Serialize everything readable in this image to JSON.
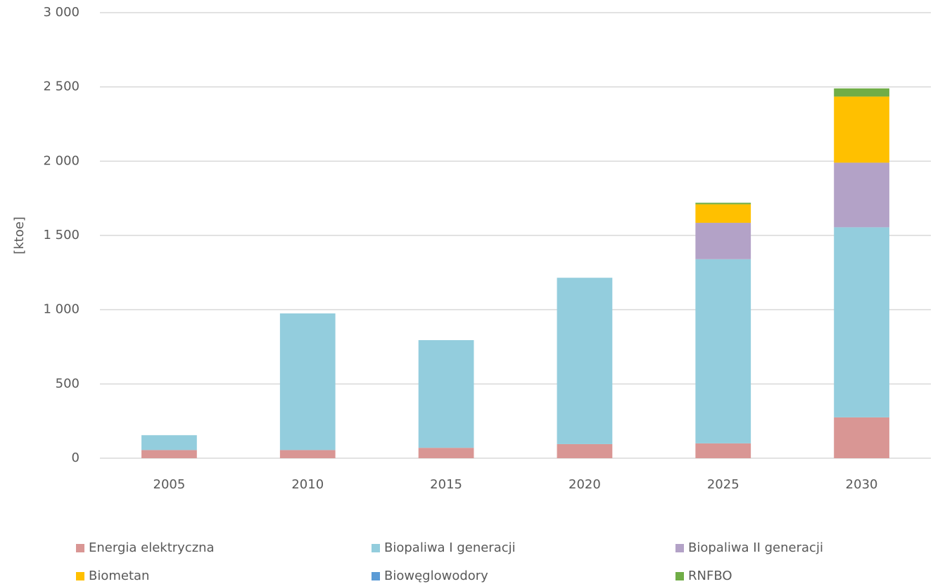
{
  "chart_data": {
    "type": "stacked_bar",
    "y_label": "[ktoe]",
    "categories": [
      "2005",
      "2010",
      "2015",
      "2020",
      "2025",
      "2030"
    ],
    "series": [
      {
        "name": "Energia elektryczna",
        "color": "#d99694",
        "values": [
          55,
          55,
          70,
          95,
          100,
          275
        ]
      },
      {
        "name": "Biopaliwa I generacji",
        "color": "#93cddd",
        "values": [
          100,
          920,
          725,
          1120,
          1240,
          1280
        ]
      },
      {
        "name": "Biopaliwa II generacji",
        "color": "#b3a2c7",
        "values": [
          0,
          0,
          0,
          0,
          245,
          435
        ]
      },
      {
        "name": "Biometan",
        "color": "#ffc000",
        "values": [
          0,
          0,
          0,
          0,
          125,
          445
        ]
      },
      {
        "name": "Biowęglowodory",
        "color": "#5b9bd5",
        "values": [
          0,
          0,
          0,
          0,
          0,
          0
        ]
      },
      {
        "name": "RNFBO",
        "color": "#70ad47",
        "values": [
          0,
          0,
          0,
          0,
          10,
          55
        ]
      }
    ],
    "ylim": [
      0,
      3000
    ],
    "yticks": [
      0,
      500,
      {
        "value": 1000,
        "label": "1 000"
      },
      {
        "value": 1500,
        "label": "1 500"
      },
      {
        "value": 2000,
        "label": "2 000"
      },
      {
        "value": 2500,
        "label": "2 500"
      },
      {
        "value": 3000,
        "label": "3 000"
      }
    ],
    "grid": true,
    "legend": "bottom"
  }
}
